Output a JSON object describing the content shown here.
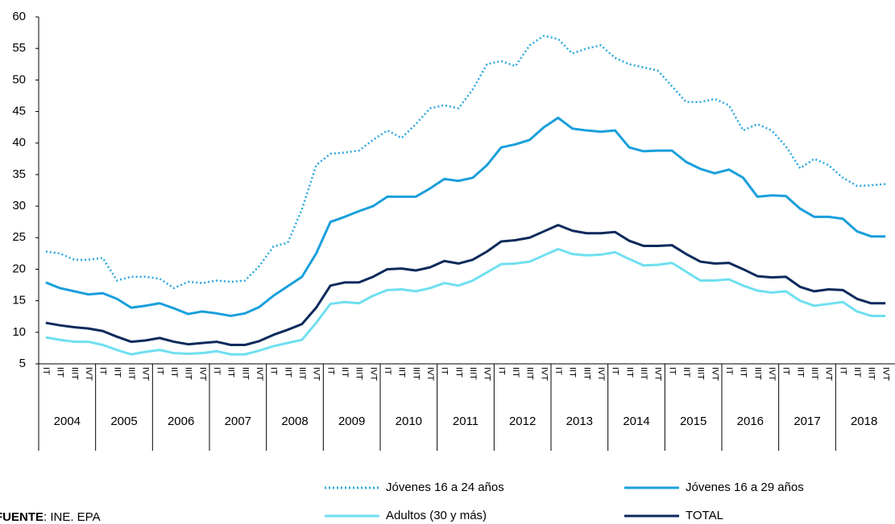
{
  "chart_data": {
    "type": "line",
    "years": [
      "2004",
      "2005",
      "2006",
      "2007",
      "2008",
      "2009",
      "2010",
      "2011",
      "2012",
      "2013",
      "2014",
      "2015",
      "2016",
      "2017",
      "2018"
    ],
    "quarters": [
      "IT",
      "IIT",
      "IIIT",
      "IVT"
    ],
    "ylim": [
      5,
      60
    ],
    "yticks": [
      5,
      10,
      15,
      20,
      25,
      30,
      35,
      40,
      45,
      50,
      55,
      60
    ],
    "series": [
      {
        "name": "Jóvenes 16 a 24 años",
        "color": "#29a8e0",
        "dash": "dotted",
        "values": [
          22.8,
          22.5,
          21.5,
          21.5,
          21.8,
          18.2,
          18.8,
          18.8,
          18.5,
          17.0,
          18.0,
          17.8,
          18.2,
          18.0,
          18.2,
          20.5,
          23.6,
          24.2,
          29.5,
          36.5,
          38.3,
          38.5,
          38.8,
          40.5,
          42.0,
          40.8,
          43.0,
          45.5,
          46.0,
          45.5,
          48.5,
          52.5,
          53.0,
          52.2,
          55.5,
          57.0,
          56.5,
          54.2,
          55.0,
          55.5,
          53.5,
          52.5,
          52.0,
          51.5,
          49.0,
          46.5,
          46.5,
          47.0,
          46.0,
          42.0,
          43.0,
          42.0,
          39.5,
          36.0,
          37.5,
          36.5,
          34.5,
          33.2,
          33.3,
          33.5
        ]
      },
      {
        "name": "Jóvenes 16 a 29 años",
        "color": "#1a9fdc",
        "dash": "solid",
        "values": [
          17.9,
          17.0,
          16.5,
          16.0,
          16.2,
          15.3,
          13.9,
          14.2,
          14.6,
          13.8,
          12.9,
          13.3,
          13.0,
          12.6,
          13.0,
          14.0,
          15.8,
          17.3,
          18.8,
          22.5,
          27.5,
          28.3,
          29.2,
          30.0,
          31.5,
          31.5,
          31.5,
          32.8,
          34.3,
          34.0,
          34.5,
          36.5,
          39.3,
          39.8,
          40.5,
          42.5,
          44.0,
          42.3,
          42.0,
          41.8,
          42.0,
          39.3,
          38.7,
          38.8,
          38.8,
          37.0,
          35.9,
          35.2,
          35.8,
          34.5,
          31.5,
          31.7,
          31.6,
          29.6,
          28.3,
          28.3,
          28.0,
          26.0,
          25.2,
          25.2
        ]
      },
      {
        "name": "Adultos (30 y más)",
        "color": "#6fdff0",
        "dash": "solid",
        "values": [
          9.2,
          8.8,
          8.5,
          8.5,
          8.0,
          7.2,
          6.5,
          6.9,
          7.2,
          6.7,
          6.6,
          6.7,
          7.0,
          6.5,
          6.5,
          7.1,
          7.8,
          8.3,
          8.8,
          11.5,
          14.5,
          14.8,
          14.6,
          15.8,
          16.7,
          16.8,
          16.5,
          17.0,
          17.8,
          17.4,
          18.2,
          19.5,
          20.8,
          20.9,
          21.2,
          22.2,
          23.2,
          22.4,
          22.2,
          22.3,
          22.7,
          21.6,
          20.6,
          20.7,
          21.0,
          19.6,
          18.2,
          18.2,
          18.4,
          17.4,
          16.6,
          16.3,
          16.5,
          15.0,
          14.2,
          14.5,
          14.8,
          13.3,
          12.6,
          12.6
        ]
      },
      {
        "name": "TOTAL",
        "color": "#0b2a5c",
        "dash": "solid",
        "values": [
          11.5,
          11.1,
          10.8,
          10.6,
          10.2,
          9.3,
          8.5,
          8.7,
          9.1,
          8.5,
          8.1,
          8.3,
          8.5,
          8.0,
          8.0,
          8.6,
          9.6,
          10.4,
          11.3,
          13.9,
          17.4,
          17.9,
          17.9,
          18.8,
          20.0,
          20.1,
          19.8,
          20.3,
          21.3,
          20.9,
          21.5,
          22.8,
          24.4,
          24.6,
          25.0,
          26.0,
          27.0,
          26.1,
          25.7,
          25.7,
          25.9,
          24.5,
          23.7,
          23.7,
          23.8,
          22.4,
          21.2,
          20.9,
          21.0,
          20.0,
          18.9,
          18.7,
          18.8,
          17.2,
          16.5,
          16.8,
          16.7,
          15.3,
          14.6,
          14.6
        ]
      }
    ],
    "source_label": "FUENTE",
    "source_text": ": INE. EPA"
  }
}
